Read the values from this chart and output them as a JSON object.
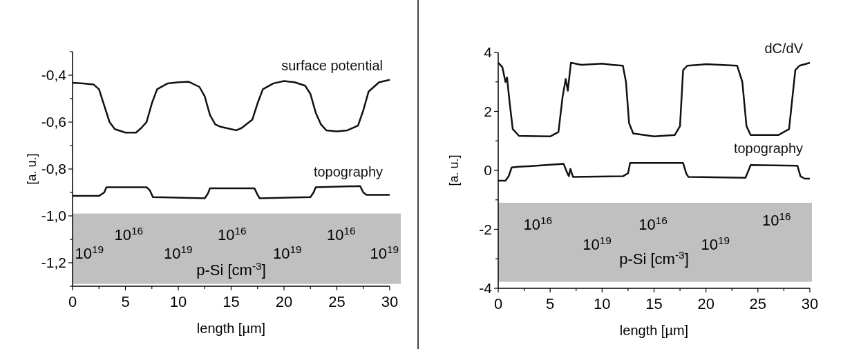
{
  "chart_data": [
    {
      "type": "line",
      "xlabel": "length [µm]",
      "ylabel": "[a. u.]",
      "xlim": [
        0,
        30
      ],
      "xticks": [
        0,
        {
          "value": 2.5,
          "label": null
        },
        5,
        {
          "value": 7.5,
          "label": null
        },
        10,
        {
          "value": 12.5,
          "label": null
        },
        15,
        {
          "value": 17.5,
          "label": null
        },
        20,
        {
          "value": 22.5,
          "label": null
        },
        25,
        {
          "value": 27.5,
          "label": null
        },
        30
      ],
      "ylim": [
        -1.3,
        -0.3
      ],
      "yticks": [
        {
          "value": -1.3,
          "label": null
        },
        {
          "value": -1.2,
          "label": "-1,2"
        },
        {
          "value": -1.1,
          "label": null
        },
        {
          "value": -1.0,
          "label": "-1,0"
        },
        {
          "value": -0.9,
          "label": null
        },
        {
          "value": -0.8,
          "label": "-0,8"
        },
        {
          "value": -0.7,
          "label": null
        },
        {
          "value": -0.6,
          "label": "-0,6"
        },
        {
          "value": -0.5,
          "label": null
        },
        {
          "value": -0.4,
          "label": "-0,4"
        },
        {
          "value": -0.3,
          "label": null
        }
      ],
      "bands": [
        {
          "axis": "y",
          "from": -1.29,
          "to": -0.99,
          "color": "#c0c0c0"
        }
      ],
      "series": [
        {
          "name": "surface potential",
          "color": "#111111",
          "x": [
            0,
            1,
            2,
            2.5,
            3,
            3.5,
            4,
            5,
            6,
            6.5,
            7,
            7.5,
            8,
            9,
            10,
            11,
            12,
            12.5,
            13,
            13.5,
            14,
            15,
            15.5,
            16,
            17,
            17.5,
            18,
            19,
            20,
            21,
            22,
            22.5,
            23,
            23.5,
            24,
            25,
            26,
            27,
            27.5,
            28,
            29,
            30
          ],
          "values": [
            -0.432,
            -0.435,
            -0.44,
            -0.46,
            -0.53,
            -0.6,
            -0.63,
            -0.645,
            -0.645,
            -0.625,
            -0.6,
            -0.52,
            -0.46,
            -0.435,
            -0.43,
            -0.428,
            -0.45,
            -0.49,
            -0.57,
            -0.61,
            -0.62,
            -0.63,
            -0.635,
            -0.625,
            -0.59,
            -0.52,
            -0.46,
            -0.435,
            -0.425,
            -0.43,
            -0.445,
            -0.48,
            -0.56,
            -0.61,
            -0.635,
            -0.64,
            -0.635,
            -0.615,
            -0.55,
            -0.47,
            -0.43,
            -0.42
          ]
        },
        {
          "name": "topography",
          "color": "#111111",
          "x": [
            0,
            2.5,
            3,
            3.2,
            7,
            7.3,
            7.6,
            12.5,
            12.8,
            13,
            17.2,
            17.5,
            17.7,
            22.5,
            22.8,
            23,
            27.2,
            27.5,
            27.8,
            30
          ],
          "values": [
            -0.915,
            -0.915,
            -0.9,
            -0.878,
            -0.878,
            -0.89,
            -0.92,
            -0.925,
            -0.905,
            -0.882,
            -0.882,
            -0.91,
            -0.925,
            -0.92,
            -0.9,
            -0.878,
            -0.873,
            -0.9,
            -0.91,
            -0.91
          ]
        }
      ],
      "annotations": [
        "10$^{19}$",
        "10$^{16}$",
        "10$^{19}$",
        "10$^{16}$",
        "10$^{19}$",
        "10$^{16}$",
        "10$^{19}$",
        "p-Si [cm$^{-3}$]"
      ]
    },
    {
      "type": "line",
      "xlabel": "length [µm]",
      "ylabel": "[a. u.]",
      "xlim": [
        0,
        30
      ],
      "xticks": [
        0,
        {
          "value": 2.5,
          "label": null
        },
        5,
        {
          "value": 7.5,
          "label": null
        },
        10,
        {
          "value": 12.5,
          "label": null
        },
        15,
        {
          "value": 17.5,
          "label": null
        },
        20,
        {
          "value": 22.5,
          "label": null
        },
        25,
        {
          "value": 27.5,
          "label": null
        },
        30
      ],
      "ylim": [
        -4,
        4
      ],
      "yticks": [
        -4,
        {
          "value": -3,
          "label": null
        },
        -2,
        {
          "value": -1,
          "label": null
        },
        0,
        {
          "value": 1,
          "label": null
        },
        2,
        {
          "value": 3,
          "label": null
        },
        4
      ],
      "bands": [
        {
          "axis": "y",
          "from": -3.78,
          "to": -1.1,
          "color": "#c0c0c0"
        }
      ],
      "series": [
        {
          "name": "dC/dV",
          "color": "#111111",
          "x": [
            0,
            0.4,
            0.7,
            0.85,
            1.1,
            1.4,
            2,
            5,
            5.8,
            6.2,
            6.5,
            6.7,
            7,
            8,
            10,
            11,
            12,
            12.3,
            12.6,
            13,
            15,
            17,
            17.5,
            17.8,
            18.2,
            20,
            23,
            23.5,
            23.9,
            24.3,
            27,
            28,
            28.6,
            29,
            30
          ],
          "values": [
            3.65,
            3.5,
            3.0,
            3.15,
            2.3,
            1.4,
            1.17,
            1.15,
            1.3,
            2.5,
            3.1,
            2.7,
            3.65,
            3.58,
            3.62,
            3.58,
            3.55,
            3.0,
            1.6,
            1.25,
            1.15,
            1.2,
            1.5,
            3.4,
            3.55,
            3.6,
            3.55,
            3.0,
            1.5,
            1.2,
            1.2,
            1.4,
            3.4,
            3.55,
            3.65
          ]
        },
        {
          "name": "topography",
          "color": "#111111",
          "x": [
            0,
            0.7,
            1,
            1.3,
            2,
            6.3,
            6.6,
            6.8,
            6.95,
            7.2,
            12,
            12.5,
            12.7,
            17.8,
            18.1,
            18.3,
            23.8,
            24.1,
            24.3,
            28.8,
            29.1,
            29.5,
            30
          ],
          "values": [
            -0.35,
            -0.35,
            -0.2,
            0.1,
            0.12,
            0.22,
            -0.05,
            -0.2,
            0.05,
            -0.22,
            -0.2,
            -0.1,
            0.25,
            0.25,
            -0.1,
            -0.22,
            -0.25,
            0,
            0.18,
            0.16,
            -0.2,
            -0.28,
            -0.28
          ]
        }
      ],
      "annotations": [
        "10$^{16}$",
        "10$^{19}$",
        "10$^{16}$",
        "10$^{19}$",
        "10$^{16}$",
        "p-Si [cm$^{-3}$]"
      ]
    }
  ]
}
